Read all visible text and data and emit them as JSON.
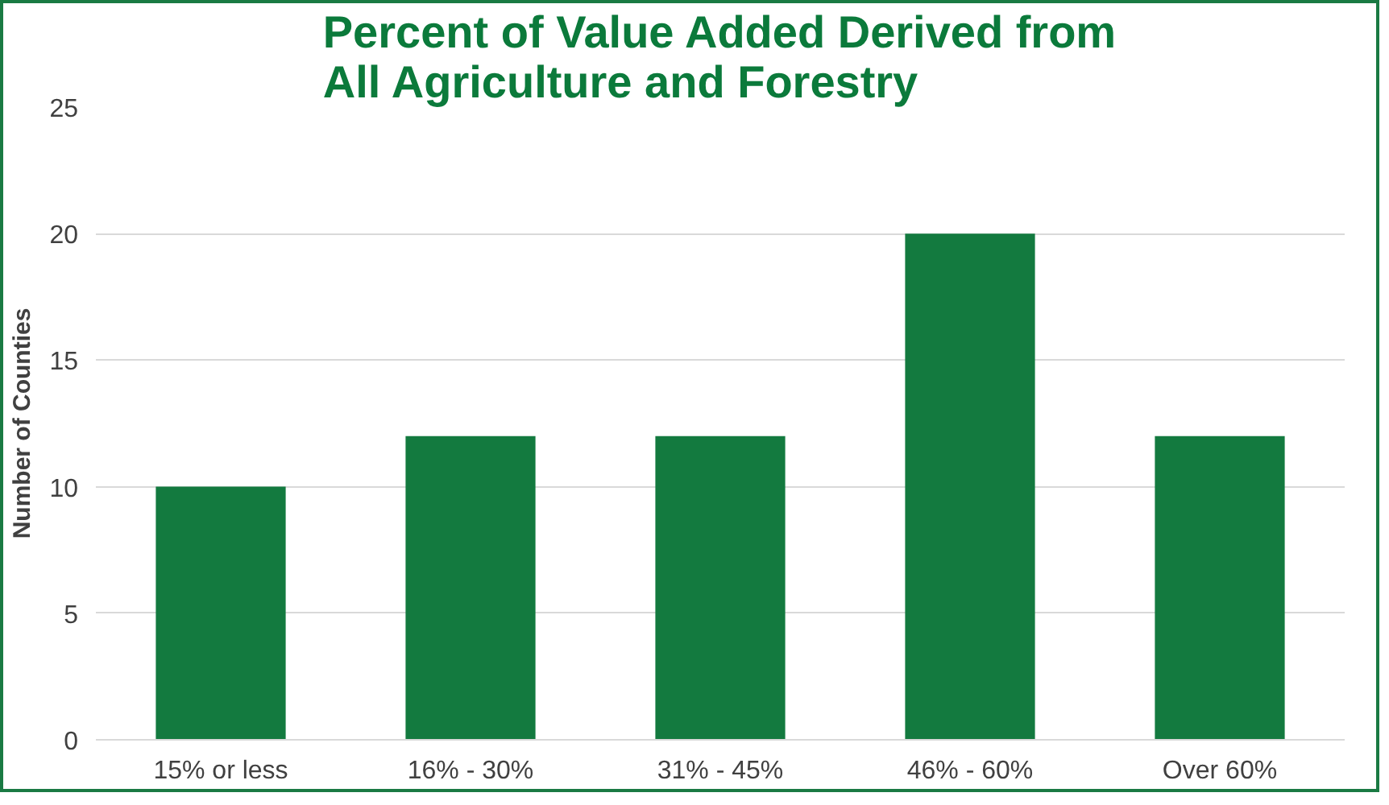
{
  "chart_data": {
    "type": "bar",
    "title": "Percent of Value Added Derived from All Agriculture and Forestry",
    "ylabel": "Number of Counties",
    "categories": [
      "15% or less",
      "16% - 30%",
      "31% - 45%",
      "46% - 60%",
      "Over 60%"
    ],
    "values": [
      10,
      12,
      12,
      20,
      12
    ],
    "color": "#137a3f",
    "ylim": [
      0,
      25
    ],
    "yticks": [
      0,
      5,
      10,
      15,
      20,
      25
    ],
    "grid": "y"
  }
}
